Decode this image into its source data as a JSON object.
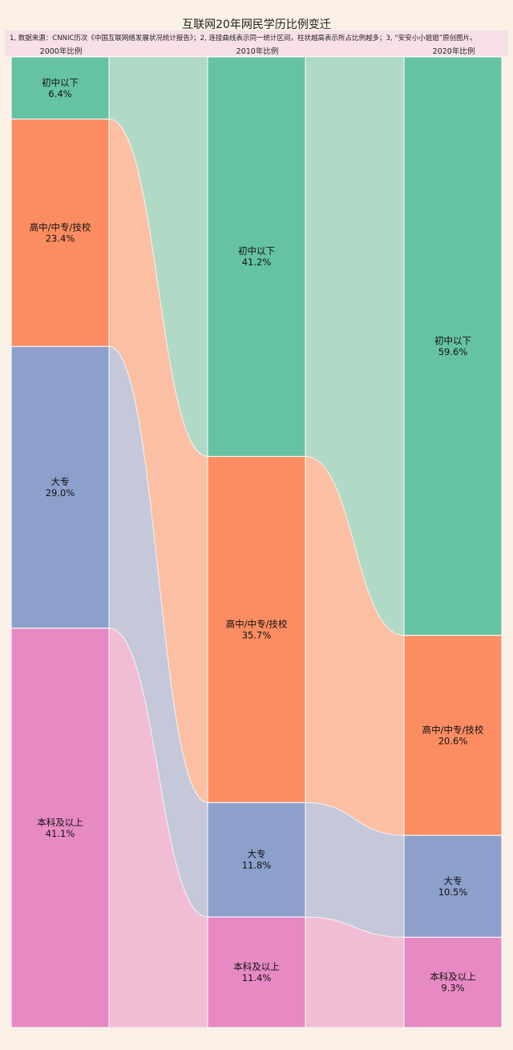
{
  "title": "互联网20年网民学历比例变迁",
  "note": "1, 数据来源：CNNIC历次《中国互联网络发展状况统计报告》；2, 连接曲线表示同一统计区间，柱状越高表示所占比例越多；3, “安安小小姐姐”原创图片。",
  "colors": {
    "初中以下": "#66c2a5",
    "高中/中专/技校": "#fc8d62",
    "大专": "#8da0cb",
    "本科及以上": "#e78ac3",
    "background": "#faf0e6"
  },
  "chart_data": {
    "type": "bar",
    "stacked": true,
    "normalized": true,
    "categories": [
      "2000年比例",
      "2010年比例",
      "2020年比例"
    ],
    "series": [
      {
        "name": "初中以下",
        "values": [
          6.4,
          41.2,
          59.6
        ],
        "labels": [
          "6.4%",
          "41.2%",
          "59.6%"
        ]
      },
      {
        "name": "高中/中专/技校",
        "values": [
          23.4,
          35.7,
          20.6
        ],
        "labels": [
          "23.4%",
          "35.7%",
          "20.6%"
        ]
      },
      {
        "name": "大专",
        "values": [
          29.0,
          11.8,
          10.5
        ],
        "labels": [
          "29.0%",
          "11.8%",
          "10.5%"
        ]
      },
      {
        "name": "本科及以上",
        "values": [
          41.1,
          11.4,
          9.3
        ],
        "labels": [
          "41.1%",
          "11.4%",
          "9.3%"
        ]
      }
    ],
    "ylim": [
      0,
      100
    ],
    "legend": "none"
  }
}
